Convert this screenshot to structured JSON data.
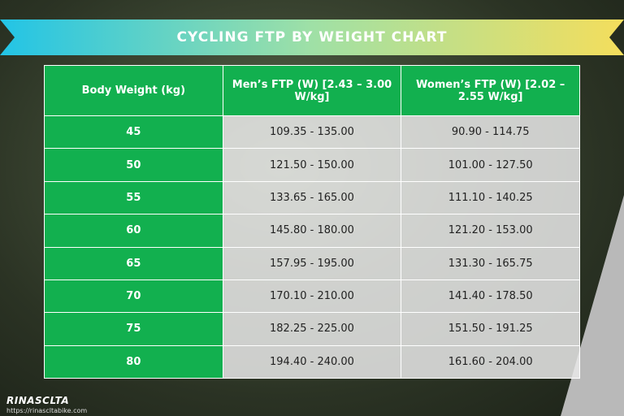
{
  "header": {
    "title": "CYCLING FTP BY WEIGHT CHART"
  },
  "table": {
    "columns": [
      "Body Weight (kg)",
      "Men’s FTP (W) [2.43 – 3.00 W/kg]",
      "Women’s FTP (W) [2.02 – 2.55 W/kg]"
    ],
    "rows": [
      [
        "45",
        "109.35 - 135.00",
        "90.90 - 114.75"
      ],
      [
        "50",
        "121.50 - 150.00",
        "101.00 - 127.50"
      ],
      [
        "55",
        "133.65 - 165.00",
        "111.10 - 140.25"
      ],
      [
        "60",
        "145.80 - 180.00",
        "121.20 - 153.00"
      ],
      [
        "65",
        "157.95 - 195.00",
        "131.30 - 165.75"
      ],
      [
        "70",
        "170.10 - 210.00",
        "141.40 - 178.50"
      ],
      [
        "75",
        "182.25 - 225.00",
        "151.50 - 191.25"
      ],
      [
        "80",
        "194.40 - 240.00",
        "161.60 - 204.00"
      ]
    ]
  },
  "footer": {
    "brand": "RINASCLTA",
    "url": "https://rinascltabike.com"
  }
}
